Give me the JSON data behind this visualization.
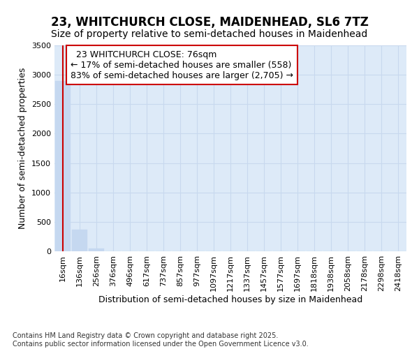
{
  "title_line1": "23, WHITCHURCH CLOSE, MAIDENHEAD, SL6 7TZ",
  "title_line2": "Size of property relative to semi-detached houses in Maidenhead",
  "xlabel": "Distribution of semi-detached houses by size in Maidenhead",
  "ylabel": "Number of semi-detached properties",
  "categories": [
    "16sqm",
    "136sqm",
    "256sqm",
    "376sqm",
    "496sqm",
    "617sqm",
    "737sqm",
    "857sqm",
    "977sqm",
    "1097sqm",
    "1217sqm",
    "1337sqm",
    "1457sqm",
    "1577sqm",
    "1697sqm",
    "1818sqm",
    "1938sqm",
    "2058sqm",
    "2178sqm",
    "2298sqm",
    "2418sqm"
  ],
  "values": [
    2900,
    370,
    50,
    5,
    2,
    1,
    0,
    0,
    0,
    0,
    0,
    0,
    0,
    0,
    0,
    0,
    0,
    0,
    0,
    0,
    0
  ],
  "bar_color": "#c5d8f0",
  "bar_edge_color": "#c5d8f0",
  "property_label": "23 WHITCHURCH CLOSE: 76sqm",
  "pct_smaller": 17,
  "pct_larger": 83,
  "n_smaller": 558,
  "n_larger": 2705,
  "annotation_box_color": "#ffffff",
  "annotation_box_edge": "#cc0000",
  "red_line_color": "#cc0000",
  "ylim": [
    0,
    3500
  ],
  "yticks": [
    0,
    500,
    1000,
    1500,
    2000,
    2500,
    3000,
    3500
  ],
  "grid_color": "#c8d8ee",
  "bg_color": "#ddeaf8",
  "footer": "Contains HM Land Registry data © Crown copyright and database right 2025.\nContains public sector information licensed under the Open Government Licence v3.0.",
  "title_fontsize": 12,
  "subtitle_fontsize": 10,
  "axis_label_fontsize": 9,
  "tick_fontsize": 8,
  "annot_fontsize": 9,
  "footer_fontsize": 7
}
